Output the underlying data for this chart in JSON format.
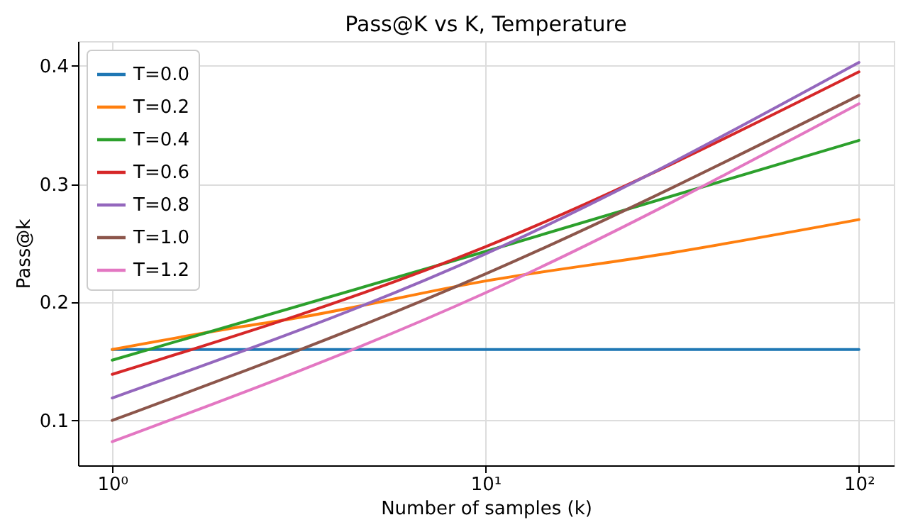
{
  "chart_data": {
    "type": "line",
    "title": "Pass@K vs K, Temperature",
    "xlabel": "Number of samples (k)",
    "ylabel": "Pass@k",
    "log": "x",
    "grid": true,
    "legend": "top left",
    "line_style": "solid",
    "marker": "none",
    "xlim": [
      0.81,
      124
    ],
    "xticks": [
      {
        "value": 1,
        "label": "10⁰"
      },
      {
        "value": 10,
        "label": "10¹"
      },
      {
        "value": 100,
        "label": "10²"
      }
    ],
    "ylim": [
      0.062,
      0.421
    ],
    "yticks": [
      0.1,
      0.2,
      0.3,
      0.4
    ],
    "series": [
      {
        "name": "T=0.0",
        "color": "#1f77b4",
        "x": [
          1,
          10,
          100
        ],
        "values": [
          0.16,
          0.16,
          0.16
        ]
      },
      {
        "name": "T=0.2",
        "color": "#ff7f0e",
        "x": [
          1,
          2,
          3.16,
          10,
          31.6,
          100
        ],
        "values": [
          0.16,
          0.177,
          0.187,
          0.218,
          0.242,
          0.27
        ]
      },
      {
        "name": "T=0.4",
        "color": "#2ca02c",
        "x": [
          1,
          10,
          100
        ],
        "values": [
          0.151,
          0.243,
          0.337
        ]
      },
      {
        "name": "T=0.6",
        "color": "#d62728",
        "x": [
          1,
          10,
          100
        ],
        "values": [
          0.139,
          0.247,
          0.395
        ]
      },
      {
        "name": "T=0.8",
        "color": "#9467bd",
        "x": [
          1,
          10,
          100
        ],
        "values": [
          0.119,
          0.241,
          0.403
        ]
      },
      {
        "name": "T=1.0",
        "color": "#8c564b",
        "x": [
          1,
          10,
          100
        ],
        "values": [
          0.1,
          0.224,
          0.375
        ]
      },
      {
        "name": "T=1.2",
        "color": "#e377c2",
        "x": [
          1,
          10,
          100
        ],
        "values": [
          0.082,
          0.208,
          0.368
        ]
      }
    ]
  }
}
